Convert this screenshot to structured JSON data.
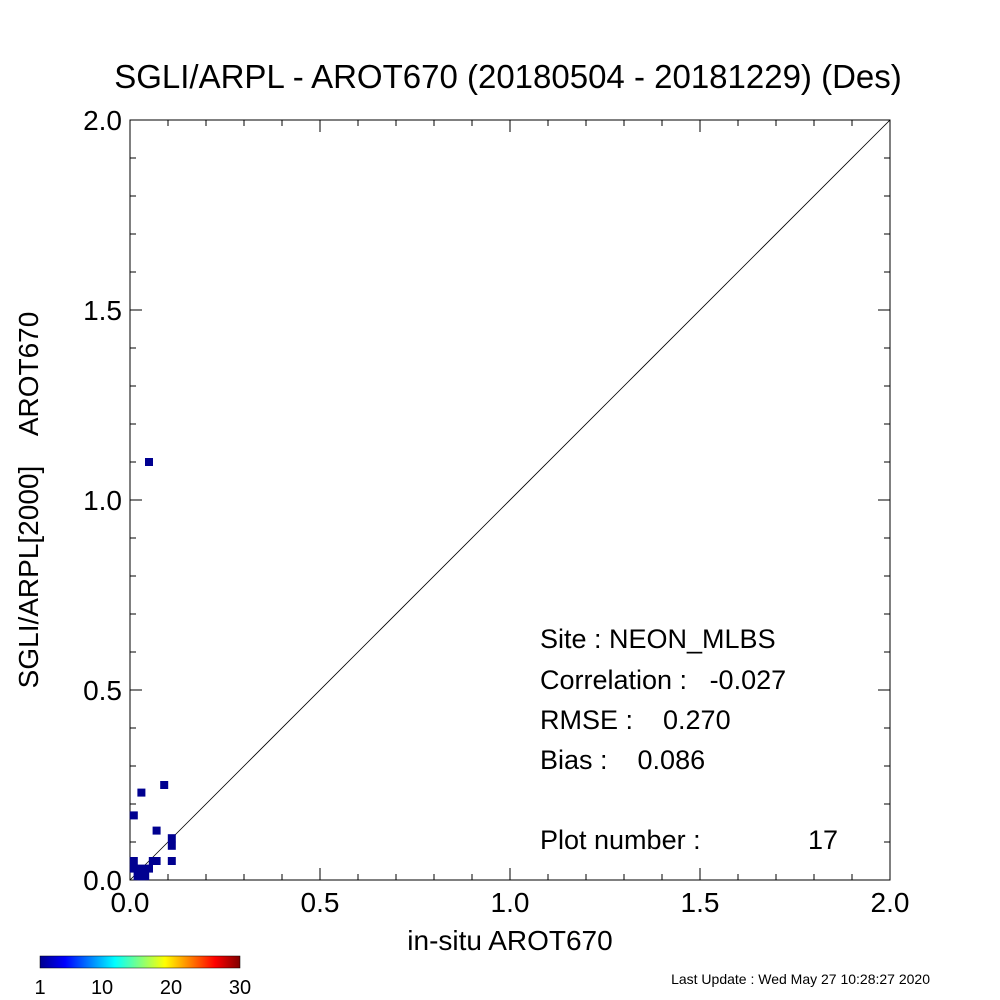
{
  "chart_data": {
    "type": "scatter",
    "title": "SGLI/ARPL - AROT670 (20180504 - 20181229) (Des)",
    "xlabel": "in-situ AROT670",
    "ylabel": "SGLI/ARPL[2000]    AROT670",
    "xlim": [
      0,
      2
    ],
    "ylim": [
      0,
      2
    ],
    "x_ticks": [
      "0.0",
      "0.5",
      "1.0",
      "1.5",
      "2.0"
    ],
    "y_ticks": [
      "0.0",
      "0.5",
      "1.0",
      "1.5",
      "2.0"
    ],
    "one_to_one_line": true,
    "grid": false,
    "points": [
      {
        "x": 0.05,
        "y": 1.1,
        "count": 1
      },
      {
        "x": 0.09,
        "y": 0.25,
        "count": 1
      },
      {
        "x": 0.03,
        "y": 0.23,
        "count": 1
      },
      {
        "x": 0.01,
        "y": 0.17,
        "count": 1
      },
      {
        "x": 0.07,
        "y": 0.13,
        "count": 1
      },
      {
        "x": 0.11,
        "y": 0.11,
        "count": 1
      },
      {
        "x": 0.11,
        "y": 0.09,
        "count": 1
      },
      {
        "x": 0.01,
        "y": 0.05,
        "count": 1
      },
      {
        "x": 0.06,
        "y": 0.05,
        "count": 1
      },
      {
        "x": 0.07,
        "y": 0.05,
        "count": 1
      },
      {
        "x": 0.11,
        "y": 0.05,
        "count": 1
      },
      {
        "x": 0.01,
        "y": 0.03,
        "count": 1
      },
      {
        "x": 0.03,
        "y": 0.03,
        "count": 1
      },
      {
        "x": 0.05,
        "y": 0.03,
        "count": 1
      },
      {
        "x": 0.02,
        "y": 0.01,
        "count": 1
      },
      {
        "x": 0.03,
        "y": 0.01,
        "count": 1
      },
      {
        "x": 0.04,
        "y": 0.01,
        "count": 1
      }
    ],
    "point_color": "#000090",
    "stats": {
      "site": "Site : NEON_MLBS",
      "correlation": "Correlation :   -0.027",
      "rmse": "RMSE :    0.270",
      "bias": "Bias :    0.086",
      "plot_number_label": "Plot number :",
      "plot_number_value": "17"
    },
    "colorbar": {
      "min": 1,
      "max": 30,
      "tick_labels": [
        "1",
        "10",
        "20",
        "30"
      ],
      "colormap": "jet"
    }
  },
  "footer": {
    "last_update": "Last Update : Wed May 27 10:28:27 2020"
  }
}
